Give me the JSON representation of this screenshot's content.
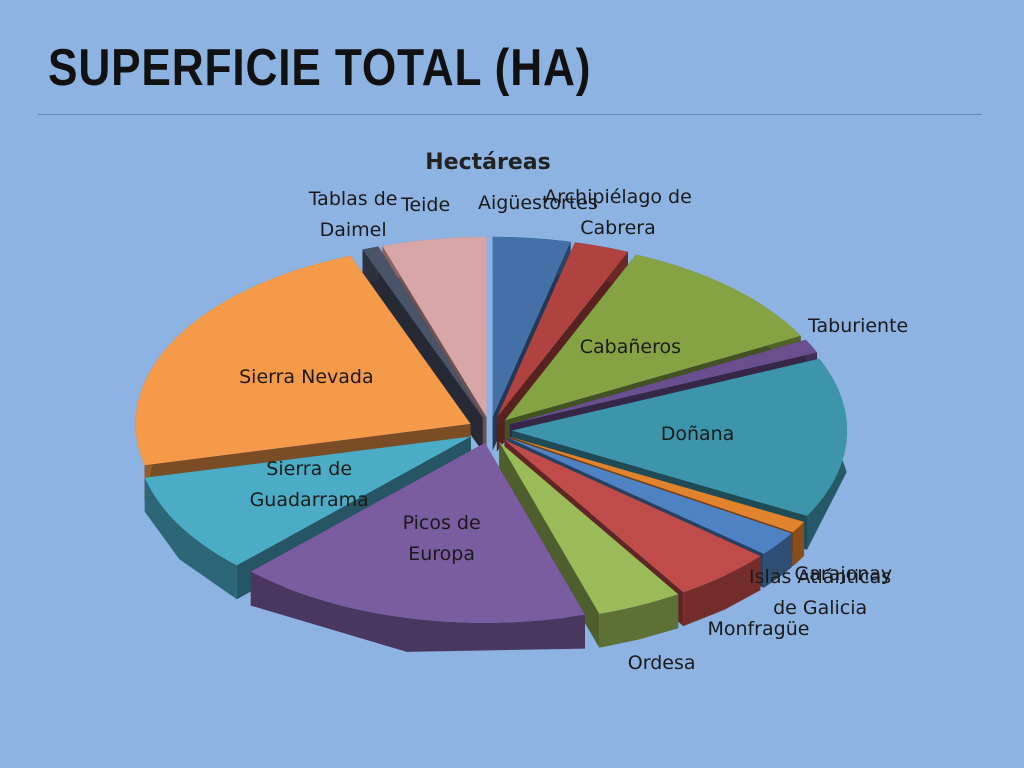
{
  "slide_title": "SUPERFICIE TOTAL (HA)",
  "chart_data": {
    "type": "pie",
    "title": "Hectáreas",
    "categories": [
      "Aigüestortes",
      "Archipiélago de Cabrera",
      "Cabañeros",
      "Taburiente",
      "Doñana",
      "Garajonay",
      "Islas Atlánticas de Galicia",
      "Monfragüe",
      "Ordesa",
      "Picos de Europa",
      "Sierra de Guadarrama",
      "Sierra Nevada",
      "Tablas de Daimel",
      "Teide"
    ],
    "values": [
      14119,
      10021,
      40856,
      4690,
      54252,
      3986,
      8480,
      18396,
      15608,
      64660,
      33960,
      86208,
      3030,
      18990
    ],
    "colors": [
      "#4470a8",
      "#b0433f",
      "#86a343",
      "#6a4f8e",
      "#3d95ab",
      "#e1822d",
      "#4f82c2",
      "#c04c4a",
      "#9bbb59",
      "#7a5ca0",
      "#4bacc6",
      "#f49a48",
      "#4a5468",
      "#d8a6a6"
    ]
  }
}
